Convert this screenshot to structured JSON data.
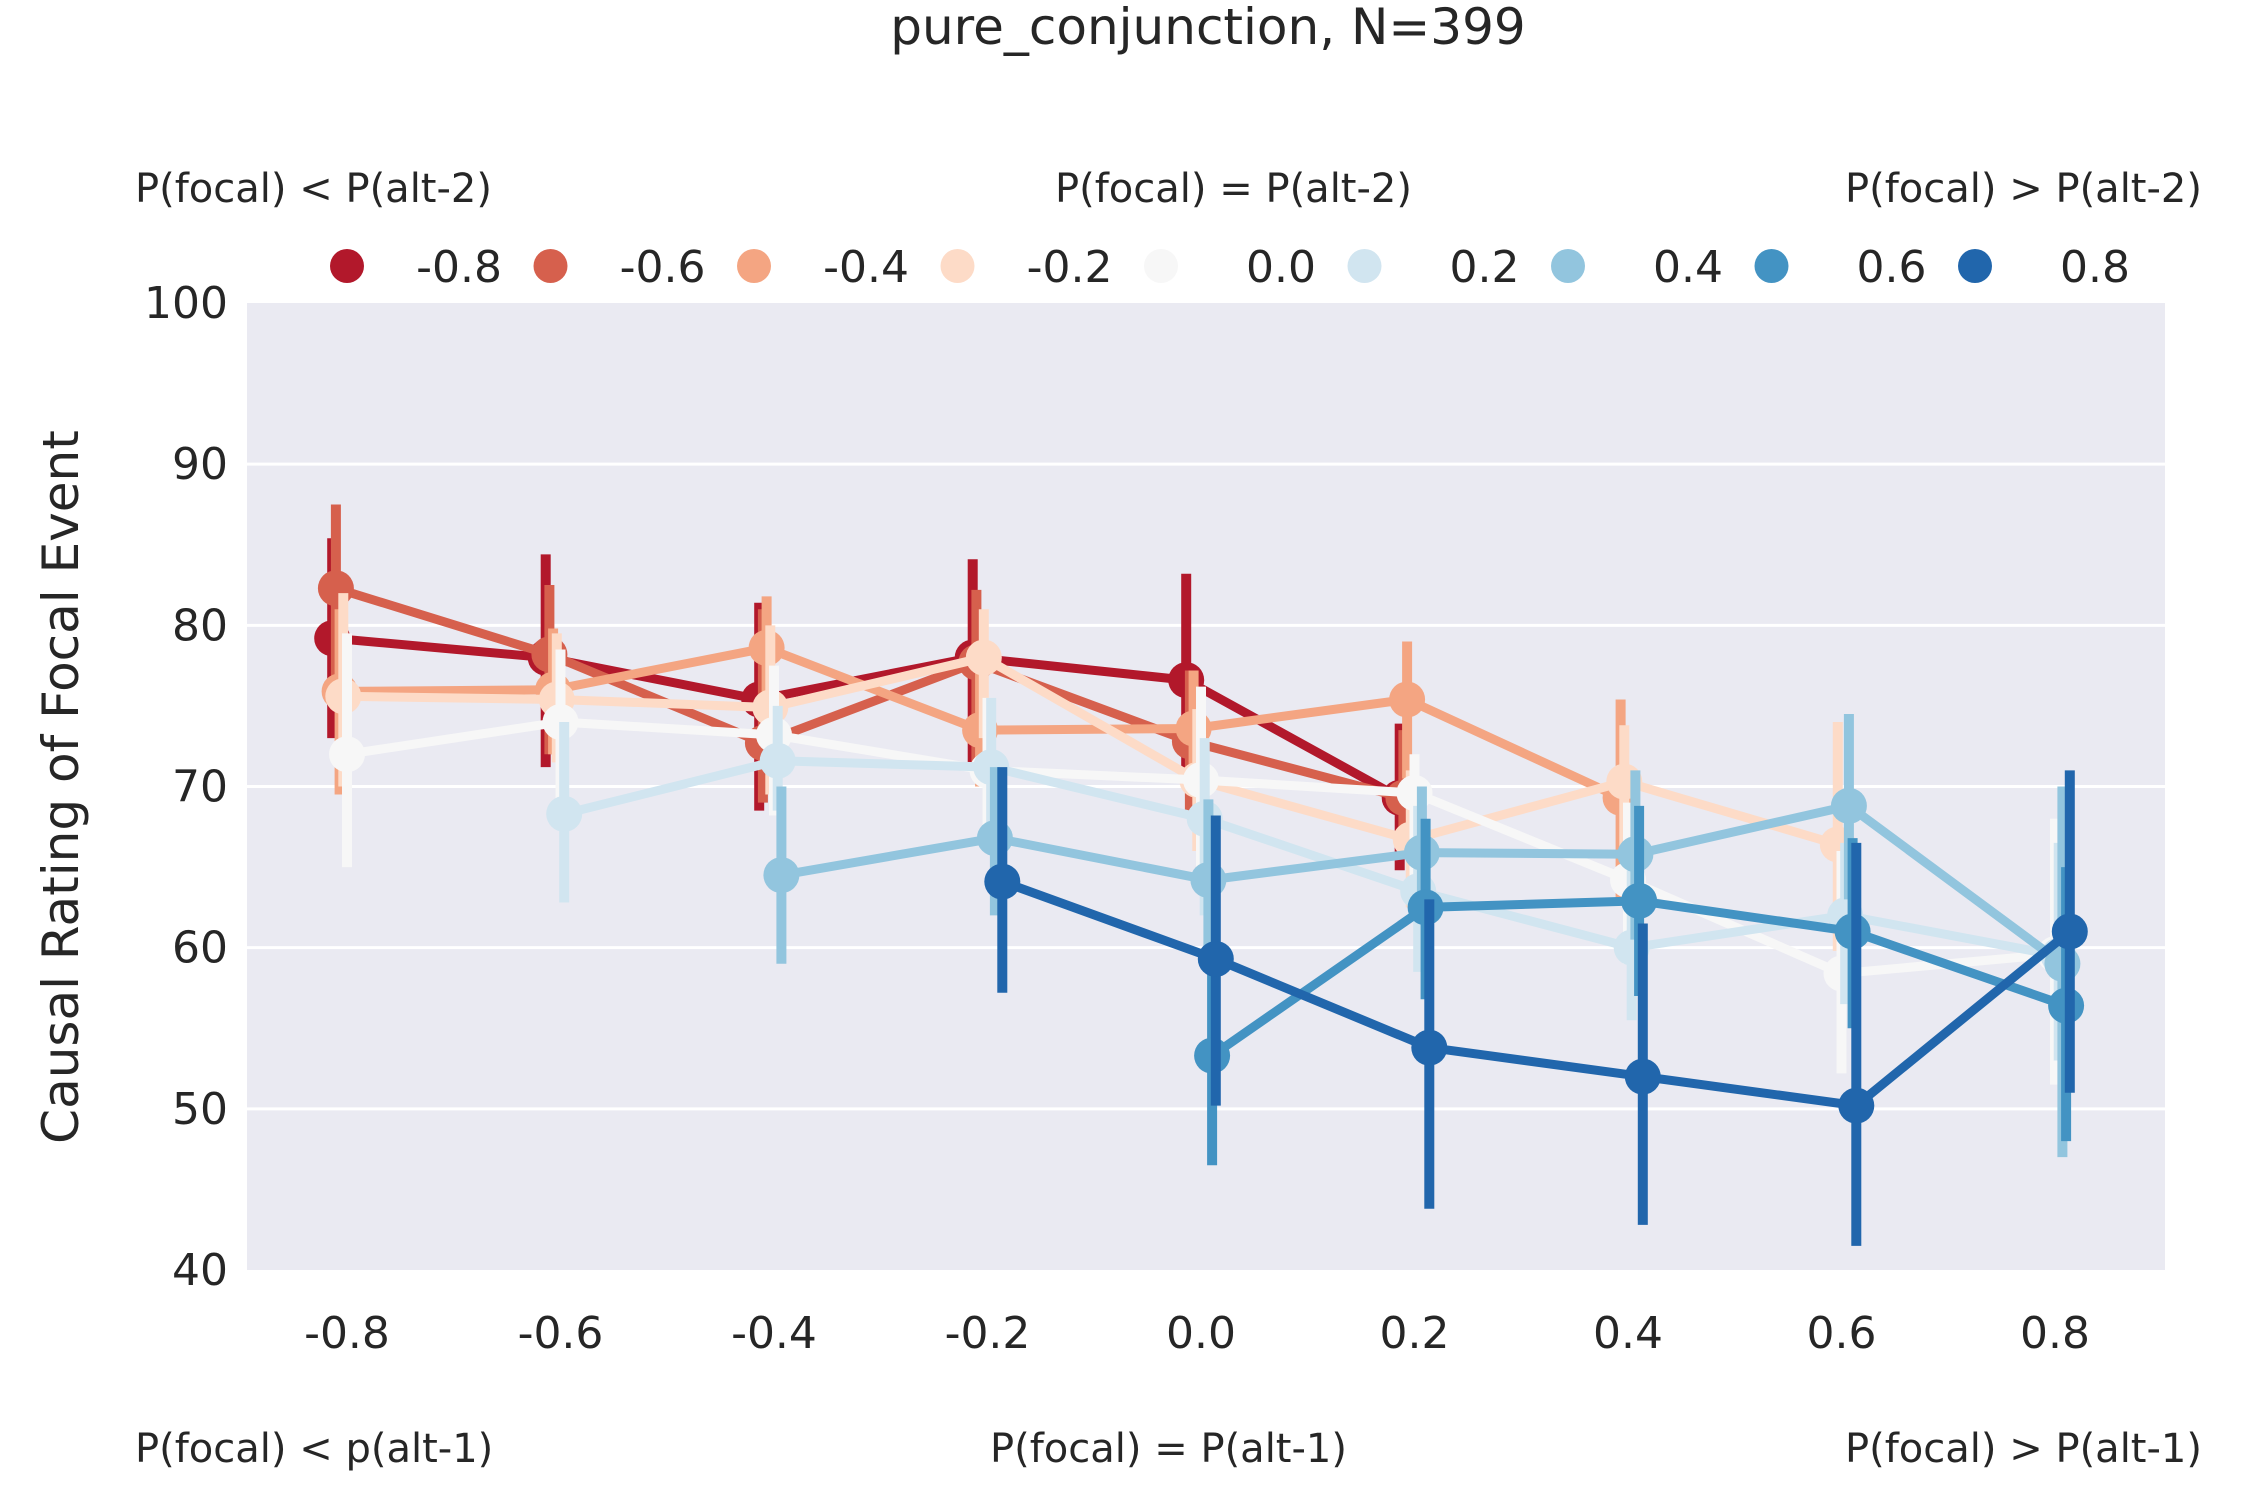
{
  "chart_data": {
    "type": "line",
    "title": "pure_conjunction, N=399",
    "ylabel": "Causal Rating of Focal Event",
    "xlabel": "",
    "x": [
      -0.8,
      -0.6,
      -0.4,
      -0.2,
      0.0,
      0.2,
      0.4,
      0.6,
      0.8
    ],
    "x_tick_labels": [
      "-0.8",
      "-0.6",
      "-0.4",
      "-0.2",
      "0.0",
      "0.2",
      "0.4",
      "0.6",
      "0.8"
    ],
    "y_ticks": [
      40,
      50,
      60,
      70,
      80,
      90,
      100
    ],
    "ylim": [
      40,
      100
    ],
    "grid": true,
    "legend_placement": "top",
    "annotations": {
      "top_left": "P(focal) < P(alt-2)",
      "top_center": "P(focal) = P(alt-2)",
      "top_right": "P(focal) > P(alt-2)",
      "bottom_left": "P(focal) < p(alt-1)",
      "bottom_center": "P(focal) = P(alt-1)",
      "bottom_right": "P(focal) > P(alt-1)"
    },
    "series": [
      {
        "name": "-0.8",
        "color": "#b2182b",
        "values": [
          79.2,
          78.0,
          75.4,
          78.0,
          76.6,
          69.3,
          null,
          null,
          null
        ],
        "ci_low": [
          73.0,
          71.2,
          68.5,
          71.5,
          70.0,
          64.8,
          null,
          null,
          null
        ],
        "ci_high": [
          85.4,
          84.4,
          81.4,
          84.1,
          83.2,
          73.9,
          null,
          null,
          null
        ]
      },
      {
        "name": "-0.6",
        "color": "#d6604d",
        "values": [
          82.3,
          78.2,
          72.7,
          77.7,
          72.8,
          69.3,
          null,
          null,
          null
        ],
        "ci_low": [
          76.5,
          72.0,
          69.0,
          70.6,
          68.5,
          65.5,
          null,
          null,
          null
        ],
        "ci_high": [
          87.5,
          82.5,
          81.0,
          82.2,
          77.2,
          73.5,
          null,
          null,
          null
        ]
      },
      {
        "name": "-0.4",
        "color": "#f4a582",
        "values": [
          75.9,
          76.0,
          78.6,
          73.5,
          73.6,
          75.4,
          69.3,
          null,
          null
        ],
        "ci_low": [
          69.5,
          72.0,
          74.0,
          70.0,
          70.0,
          70.5,
          63.0,
          null,
          null
        ],
        "ci_high": [
          81.0,
          79.8,
          81.8,
          77.5,
          77.2,
          79.0,
          75.4,
          null,
          null
        ]
      },
      {
        "name": "-0.2",
        "color": "#fddbc7",
        "values": [
          75.6,
          75.4,
          74.9,
          78.0,
          70.4,
          66.7,
          70.3,
          66.4,
          null
        ],
        "ci_low": [
          70.0,
          71.5,
          69.5,
          73.0,
          66.0,
          62.5,
          66.0,
          59.8,
          null
        ],
        "ci_high": [
          82.0,
          79.5,
          80.0,
          81.0,
          74.8,
          71.0,
          73.8,
          74.0,
          null
        ]
      },
      {
        "name": "0.0",
        "color": "#f7f7f7",
        "values": [
          72.0,
          74.0,
          73.2,
          71.0,
          70.4,
          69.6,
          64.2,
          58.4,
          59.6
        ],
        "ci_low": [
          65.0,
          69.0,
          68.2,
          66.5,
          64.8,
          63.0,
          59.0,
          52.2,
          51.5
        ],
        "ci_high": [
          79.5,
          78.5,
          77.5,
          75.5,
          76.2,
          72.0,
          69.0,
          66.0,
          68.0
        ]
      },
      {
        "name": "0.2",
        "color": "#d1e5f0",
        "values": [
          null,
          68.3,
          71.6,
          71.2,
          68.0,
          63.5,
          60.0,
          62.0,
          59.5
        ],
        "ci_low": [
          null,
          62.8,
          68.5,
          67.0,
          62.0,
          58.5,
          55.5,
          56.5,
          53.0
        ],
        "ci_high": [
          null,
          74.0,
          75.0,
          75.5,
          73.0,
          68.8,
          64.8,
          66.5,
          66.5
        ]
      },
      {
        "name": "0.4",
        "color": "#92c5de",
        "values": [
          null,
          null,
          64.5,
          66.8,
          64.2,
          65.9,
          65.8,
          68.8,
          59.0
        ],
        "ci_low": [
          null,
          null,
          59.0,
          62.0,
          59.0,
          61.5,
          60.5,
          63.0,
          47.0
        ],
        "ci_high": [
          null,
          null,
          70.0,
          71.2,
          69.2,
          70.0,
          71.0,
          74.5,
          70.0
        ]
      },
      {
        "name": "0.6",
        "color": "#4393c3",
        "values": [
          null,
          null,
          null,
          null,
          53.3,
          62.5,
          62.9,
          61.0,
          56.4
        ],
        "ci_low": [
          null,
          null,
          null,
          null,
          46.5,
          56.8,
          57.0,
          55.0,
          48.0
        ],
        "ci_high": [
          null,
          null,
          null,
          null,
          60.0,
          68.0,
          68.8,
          66.8,
          65.0
        ]
      },
      {
        "name": "0.8",
        "color": "#2166ac",
        "values": [
          null,
          null,
          null,
          64.1,
          59.3,
          53.8,
          52.0,
          50.2,
          61.0
        ],
        "ci_low": [
          null,
          null,
          null,
          57.2,
          50.2,
          43.8,
          42.8,
          41.5,
          51.0
        ],
        "ci_high": [
          null,
          null,
          null,
          71.2,
          68.2,
          63.0,
          61.5,
          66.5,
          71.0
        ]
      }
    ]
  }
}
